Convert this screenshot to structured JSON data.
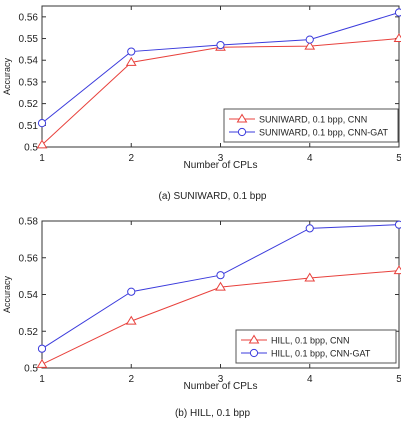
{
  "colors": {
    "cnn": "#e8413c",
    "gat": "#3b3bdc",
    "axis": "#333333",
    "legend_border": "#555555"
  },
  "chart_data": [
    {
      "type": "line",
      "caption": "(a) SUNIWARD, 0.1 bpp",
      "xlabel": "Number of CPLs",
      "ylabel": "Accuracy",
      "x": [
        1,
        2,
        3,
        4,
        5
      ],
      "xlim": [
        1,
        5
      ],
      "ylim": [
        0.5,
        0.565
      ],
      "yticks": [
        0.5,
        0.51,
        0.52,
        0.53,
        0.54,
        0.55,
        0.56
      ],
      "ytick_labels": [
        "0.5",
        "0.51",
        "0.52",
        "0.53",
        "0.54",
        "0.55",
        "0.56"
      ],
      "xtick_labels": [
        "1",
        "2",
        "3",
        "4",
        "5"
      ],
      "legend_position": "bottom-right",
      "series": [
        {
          "name": "SUNIWARD, 0.1 bpp, CNN",
          "marker": "triangle",
          "color": "#e8413c",
          "values": [
            0.501,
            0.539,
            0.546,
            0.5465,
            0.55
          ]
        },
        {
          "name": "SUNIWARD, 0.1 bpp, CNN-GAT",
          "marker": "circle",
          "color": "#3b3bdc",
          "values": [
            0.511,
            0.544,
            0.547,
            0.5495,
            0.562
          ]
        }
      ]
    },
    {
      "type": "line",
      "caption": "(b) HILL, 0.1 bpp",
      "xlabel": "Number of CPLs",
      "ylabel": "Accuracy",
      "x": [
        1,
        2,
        3,
        4,
        5
      ],
      "xlim": [
        1,
        5
      ],
      "ylim": [
        0.5,
        0.58
      ],
      "yticks": [
        0.5,
        0.52,
        0.54,
        0.56,
        0.58
      ],
      "ytick_labels": [
        "0.5",
        "0.52",
        "0.54",
        "0.56",
        "0.58"
      ],
      "xtick_labels": [
        "1",
        "2",
        "3",
        "4",
        "5"
      ],
      "legend_position": "bottom-right",
      "series": [
        {
          "name": "HILL, 0.1 bpp, CNN",
          "marker": "triangle",
          "color": "#e8413c",
          "values": [
            0.502,
            0.5255,
            0.544,
            0.549,
            0.553
          ]
        },
        {
          "name": "HILL, 0.1 bpp, CNN-GAT",
          "marker": "circle",
          "color": "#3b3bdc",
          "values": [
            0.5105,
            0.5415,
            0.5505,
            0.576,
            0.578
          ]
        }
      ]
    }
  ]
}
